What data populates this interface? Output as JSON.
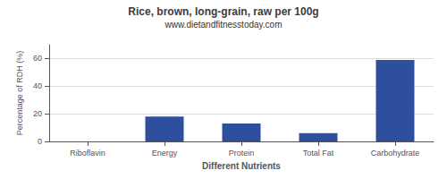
{
  "chart_data": {
    "type": "bar",
    "title": "Rice, brown, long-grain, raw per 100g",
    "subtitle": "www.dietandfitnesstoday.com",
    "xlabel": "Different Nutrients",
    "ylabel": "Percentage of RDH (%)",
    "categories": [
      "Riboflavin",
      "Energy",
      "Protein",
      "Total Fat",
      "Carbohydrate"
    ],
    "values": [
      0,
      18,
      13,
      6,
      59
    ],
    "color": "#2e4f9e",
    "ylim": [
      0,
      70
    ],
    "yticks": [
      0,
      20,
      40,
      60
    ],
    "grid": true
  }
}
